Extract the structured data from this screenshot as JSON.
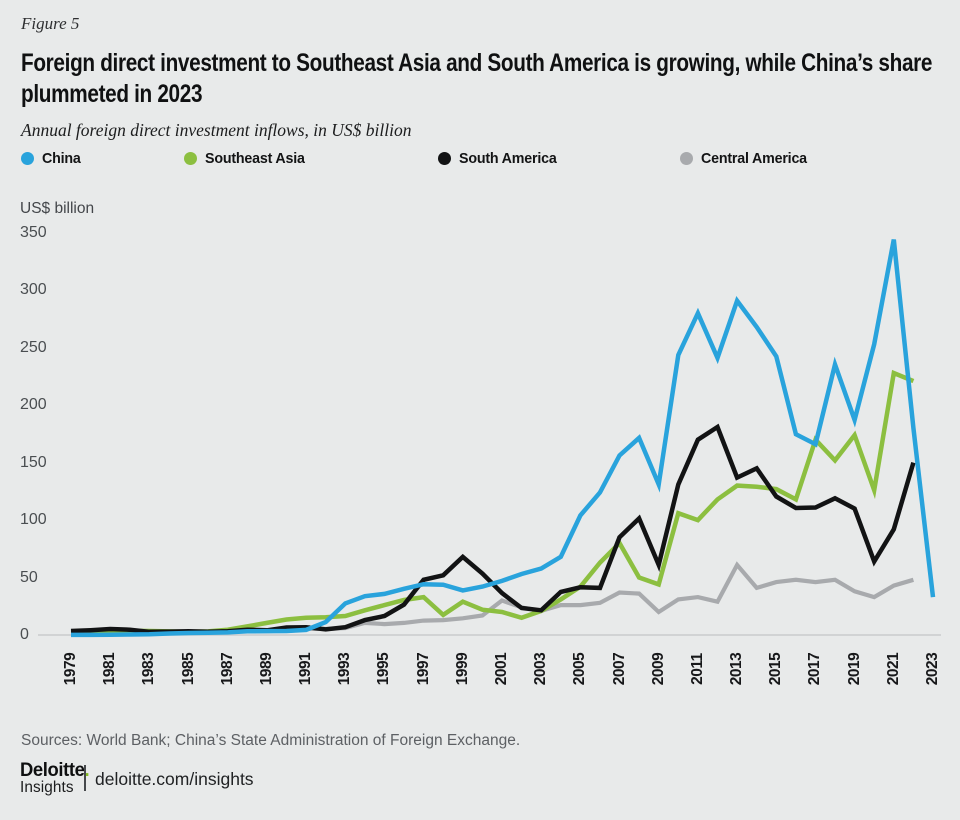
{
  "header": {
    "figure_label": "Figure 5",
    "title": "Foreign direct investment to Southeast Asia and South America is growing, while China’s share plummeted in 2023",
    "subtitle": "Annual foreign direct investment inflows, in US$ billion"
  },
  "legend": {
    "items": [
      {
        "id": "china",
        "label": "China",
        "color": "#29a3dc"
      },
      {
        "id": "southeast-asia",
        "label": "Southeast Asia",
        "color": "#8cbf40"
      },
      {
        "id": "south-america",
        "label": "South America",
        "color": "#121314"
      },
      {
        "id": "central-america",
        "label": "Central America",
        "color": "#a8aaad"
      }
    ]
  },
  "chart_data": {
    "type": "line",
    "unit_label": "US$ billion",
    "x": [
      1979,
      1980,
      1981,
      1982,
      1983,
      1984,
      1985,
      1986,
      1987,
      1988,
      1989,
      1990,
      1991,
      1992,
      1993,
      1994,
      1995,
      1996,
      1997,
      1998,
      1999,
      2000,
      2001,
      2002,
      2003,
      2004,
      2005,
      2006,
      2007,
      2008,
      2009,
      2010,
      2011,
      2012,
      2013,
      2014,
      2015,
      2016,
      2017,
      2018,
      2019,
      2020,
      2021,
      2022,
      2023
    ],
    "x_tick_labels": [
      "1979",
      "1981",
      "1983",
      "1985",
      "1987",
      "1989",
      "1991",
      "1993",
      "1995",
      "1997",
      "1999",
      "2001",
      "2003",
      "2005",
      "2007",
      "2009",
      "2011",
      "2013",
      "2015",
      "2017",
      "2019",
      "2021",
      "2023"
    ],
    "y_ticks": [
      0,
      50,
      100,
      150,
      200,
      250,
      300,
      350
    ],
    "ylim": [
      0,
      350
    ],
    "grid": false,
    "legend_position": "top",
    "series": [
      {
        "name": "Central America",
        "color": "#a8aaad",
        "width": 4.2,
        "values": [
          1.5,
          2.2,
          3.0,
          2.1,
          2.3,
          1.7,
          2.0,
          2.4,
          3.2,
          3.6,
          3.4,
          4.0,
          5.5,
          5.2,
          6.0,
          10.5,
          9.5,
          10.5,
          12.5,
          13.0,
          14.5,
          17.0,
          30.0,
          24.0,
          21.0,
          26.0,
          26.0,
          28.0,
          37.0,
          36.0,
          20.0,
          31.0,
          33.0,
          29.0,
          61.0,
          41.0,
          46.0,
          48.0,
          46.0,
          48.0,
          38.0,
          33.0,
          43.0,
          48.0,
          null
        ]
      },
      {
        "name": "Southeast Asia",
        "color": "#8cbf40",
        "width": 4.5,
        "values": [
          2.5,
          3.0,
          3.4,
          3.7,
          3.5,
          3.1,
          2.7,
          3.1,
          4.6,
          7.5,
          10.5,
          13.5,
          15.0,
          15.5,
          16.5,
          21.5,
          26.0,
          30.5,
          33.0,
          17.5,
          29.0,
          22.0,
          20.0,
          15.0,
          21.0,
          31.0,
          42.0,
          63.0,
          80.0,
          50.0,
          44.0,
          106.0,
          100.0,
          118.0,
          130.0,
          129.0,
          127.0,
          118.0,
          170.0,
          152.0,
          174.0,
          126.0,
          228.0,
          221.0,
          null
        ]
      },
      {
        "name": "South America",
        "color": "#121314",
        "width": 4.5,
        "values": [
          3.5,
          4.2,
          5.2,
          4.6,
          2.8,
          3.0,
          3.2,
          2.8,
          3.3,
          4.6,
          4.1,
          6.5,
          6.8,
          5.0,
          6.8,
          13.0,
          16.5,
          26.5,
          48.0,
          52.0,
          68.0,
          53.5,
          36.5,
          23.5,
          21.5,
          37.5,
          41.5,
          41.0,
          85.0,
          101.5,
          61.0,
          131.0,
          170.0,
          181.0,
          137.0,
          145.0,
          120.5,
          110.5,
          111.0,
          119.0,
          110.0,
          64.0,
          92.0,
          150.0,
          null
        ]
      },
      {
        "name": "China",
        "color": "#29a3dc",
        "width": 4.5,
        "values": [
          0.1,
          0.1,
          0.3,
          0.4,
          0.6,
          1.3,
          1.7,
          1.9,
          2.3,
          3.2,
          3.4,
          3.5,
          4.4,
          11.2,
          27.5,
          33.8,
          35.8,
          40.2,
          44.2,
          43.8,
          38.8,
          42.1,
          47.1,
          53.1,
          57.9,
          68.1,
          104.1,
          124.1,
          156.2,
          171.5,
          131.1,
          243.7,
          280.1,
          241.2,
          290.9,
          268.1,
          242.5,
          174.8,
          166.1,
          235.4,
          187.2,
          253.1,
          344.1,
          180.2,
          33.0
        ]
      }
    ]
  },
  "footer": {
    "sources": "Sources: World Bank; China’s State Administration of Foreign Exchange.",
    "logo": {
      "brand": "Deloitte",
      "brand_dot": ".",
      "sub": "Insights"
    },
    "url": "deloitte.com/insights"
  }
}
